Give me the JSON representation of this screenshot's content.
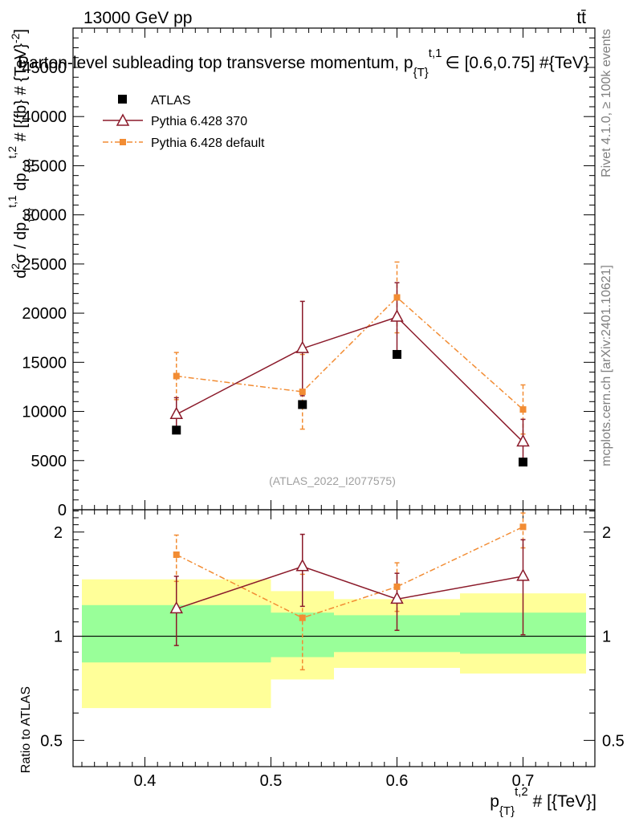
{
  "header": {
    "energy_label": "13000 GeV pp",
    "process_label": "tt̄",
    "watermark": "(ATLAS_2022_I2077575)",
    "side_label_top": "Rivet 4.1.0, ≥ 100k events",
    "side_label_bottom": "mcplots.cern.ch [arXiv:2401.10621]"
  },
  "chart_data": [
    {
      "type": "line",
      "title": "Parton-level subleading top transverse momentum, p_{T}^{t,1} ∈ [0.6,0.75] #{TeV}",
      "title_main": "Parton-level subleading top transverse momentum, p",
      "title_sub": "{T}",
      "title_sup": "t,1",
      "title_tail": "∈ [0.6,0.75] #{TeV}",
      "ylabel": "d²σ / dp_{T}^{t,1} dp_{T}^{t,2} # [{fb} # {TeV}^{-2}]",
      "ylabel_parts": [
        "d",
        "2",
        "σ / dp",
        "{T}",
        "t,1",
        " dp",
        "{T}",
        "t,2",
        " # [{fb} # {TeV}",
        "-2",
        "]"
      ],
      "xlim": [
        0.343,
        0.757
      ],
      "ylim": [
        0,
        49000
      ],
      "yticks": [
        0,
        5000,
        10000,
        15000,
        20000,
        25000,
        30000,
        35000,
        40000,
        45000
      ],
      "ytick_labels": [
        "0",
        "5000",
        "10000",
        "15000",
        "20000",
        "25000",
        "30000",
        "35000",
        "40000",
        "45000"
      ],
      "series": [
        {
          "name": "ATLAS",
          "style": "data",
          "color": "#000000",
          "x": [
            0.425,
            0.525,
            0.6,
            0.7
          ],
          "y": [
            8100,
            10700,
            15800,
            4850
          ],
          "yerr": [
            [
              0,
              0
            ],
            [
              0,
              0
            ],
            [
              0,
              0
            ],
            [
              0,
              0
            ]
          ]
        },
        {
          "name": "Pythia 6.428 370",
          "style": "triangle-solid",
          "color": "#8b1a2a",
          "x": [
            0.425,
            0.525,
            0.6,
            0.7
          ],
          "y": [
            9700,
            16400,
            19600,
            6900
          ],
          "yerr": [
            [
              1700,
              1700
            ],
            [
              4800,
              4800
            ],
            [
              3500,
              3500
            ],
            [
              2300,
              2300
            ]
          ]
        },
        {
          "name": "Pythia 6.428 default",
          "style": "square-dashdot",
          "color": "#f28c33",
          "x": [
            0.425,
            0.525,
            0.6,
            0.7
          ],
          "y": [
            13600,
            12000,
            21600,
            10200
          ],
          "yerr": [
            [
              2400,
              2400
            ],
            [
              3800,
              3800
            ],
            [
              3600,
              3600
            ],
            [
              2500,
              2500
            ]
          ]
        }
      ]
    },
    {
      "type": "line",
      "ylabel": "Ratio to ATLAS",
      "xlabel": "p_{T}^{t,2} # [{TeV}]",
      "xlabel_parts": [
        "p",
        "{T}",
        "t,2",
        " # [{TeV}]"
      ],
      "xlim": [
        0.343,
        0.757
      ],
      "ylim": [
        0.42,
        2.32
      ],
      "log_y": true,
      "xticks": [
        0.4,
        0.5,
        0.6,
        0.7
      ],
      "xtick_labels": [
        "0.4",
        "0.5",
        "0.6",
        "0.7"
      ],
      "yticks": [
        0.5,
        1,
        2
      ],
      "ytick_labels": [
        "0.5",
        "1",
        "2"
      ],
      "bands": [
        {
          "x0": 0.35,
          "x1": 0.5,
          "inner": [
            0.84,
            1.23
          ],
          "outer": [
            0.62,
            1.46
          ]
        },
        {
          "x0": 0.5,
          "x1": 0.55,
          "inner": [
            0.87,
            1.17
          ],
          "outer": [
            0.75,
            1.35
          ]
        },
        {
          "x0": 0.55,
          "x1": 0.65,
          "inner": [
            0.9,
            1.15
          ],
          "outer": [
            0.81,
            1.28
          ]
        },
        {
          "x0": 0.65,
          "x1": 0.75,
          "inner": [
            0.89,
            1.17
          ],
          "outer": [
            0.78,
            1.33
          ]
        }
      ],
      "band_colors": {
        "inner": "#99ff99",
        "outer": "#ffff99"
      },
      "series": [
        {
          "name": "Pythia 6.428 370",
          "color": "#8b1a2a",
          "x": [
            0.425,
            0.525,
            0.6,
            0.7
          ],
          "y": [
            1.2,
            1.59,
            1.28,
            1.49
          ],
          "yerr_low": [
            0.26,
            0.37,
            0.24,
            0.48
          ],
          "yerr_high": [
            0.29,
            0.38,
            0.24,
            0.41
          ]
        },
        {
          "name": "Pythia 6.428 default",
          "color": "#f28c33",
          "x": [
            0.425,
            0.525,
            0.6,
            0.7
          ],
          "y": [
            1.72,
            1.13,
            1.39,
            2.07
          ],
          "yerr_low": [
            0.28,
            0.33,
            0.21,
            0.27
          ],
          "yerr_high": [
            0.24,
            0.38,
            0.24,
            0.2
          ]
        }
      ]
    }
  ]
}
